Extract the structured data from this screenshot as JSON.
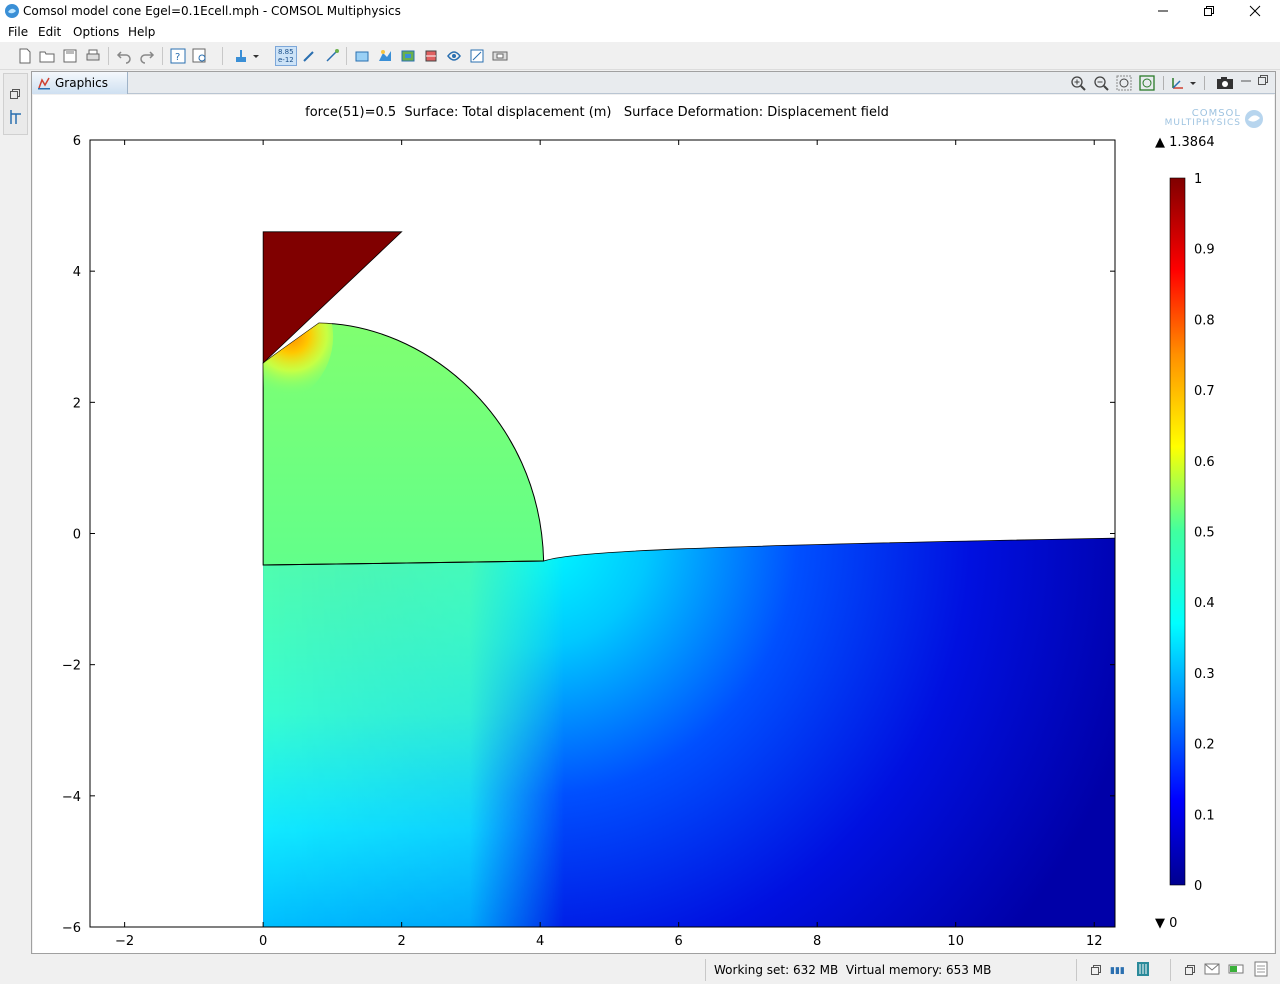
{
  "window": {
    "title": "Comsol model cone Egel=0.1Ecell.mph - COMSOL Multiphysics",
    "app_icon": "comsol-app-icon"
  },
  "menu": {
    "items": [
      "File",
      "Edit",
      "Options",
      "Help"
    ]
  },
  "toolbar": {
    "icons": [
      "new-icon",
      "open-icon",
      "save-icon",
      "print-icon",
      "undo-icon",
      "redo-icon",
      "help-icon",
      "dynamic-help-icon",
      "build-all-icon",
      "dropdown-icon",
      "parameter-display-icon",
      "variable-utilities-icon",
      "geometry-tools-icon",
      "mesh-icon",
      "study-icon",
      "results-icon",
      "3d-plot-icon",
      "table-icon",
      "export-icon",
      "layout-icon"
    ],
    "param_button_line1": "8.85",
    "param_button_line2": "e-12"
  },
  "graphics": {
    "tab_label": "Graphics",
    "title_parts": [
      "force(51)=0.5",
      "Surface: Total displacement (m)",
      "Surface Deformation: Displacement field"
    ],
    "logo_line1": "COMSOL",
    "logo_line2": "MULTIPHYSICS"
  },
  "colorbar": {
    "max_label": "▲ 1.3864",
    "min_label": "▼ 0",
    "ticks": [
      "1",
      "0.9",
      "0.8",
      "0.7",
      "0.6",
      "0.5",
      "0.4",
      "0.3",
      "0.2",
      "0.1",
      "0"
    ],
    "range": [
      0,
      1
    ],
    "colormap": "rainbow"
  },
  "axes": {
    "x_ticks": [
      "−2",
      "0",
      "2",
      "4",
      "6",
      "8",
      "10",
      "12"
    ],
    "y_ticks": [
      "6",
      "4",
      "2",
      "0",
      "−2",
      "−4",
      "−6"
    ],
    "xlim": [
      -2.5,
      12.3
    ],
    "ylim": [
      -6,
      6
    ]
  },
  "colors": {
    "indenter": "#800000",
    "cell_surface": "#7ff06a",
    "substrate_hot": "#00ffff",
    "substrate_cold": "#0000b0"
  },
  "status": {
    "text": "Working set: 632 MB  Virtual memory: 653 MB"
  }
}
